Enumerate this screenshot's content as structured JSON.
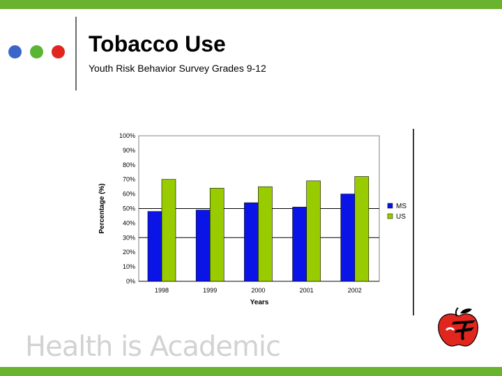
{
  "slide": {
    "title": "Tobacco Use",
    "subtitle": "Youth Risk Behavior Survey Grades 9-12",
    "footer": "Health is Academic",
    "colors": {
      "accent_bar": "#6ab32e",
      "dot_blue": "#3a66c8",
      "dot_green": "#5ab534",
      "dot_red": "#e0261e",
      "logo_red": "#e0261e"
    },
    "icons": [
      "apple-logo-icon"
    ]
  },
  "chart_data": {
    "type": "bar",
    "categories": [
      "1998",
      "1999",
      "2000",
      "2001",
      "2002"
    ],
    "series": [
      {
        "name": "MS",
        "values": [
          48,
          49,
          54,
          51,
          60
        ],
        "color": "#0a14e6"
      },
      {
        "name": "US",
        "values": [
          70,
          64,
          65,
          69,
          72
        ],
        "color": "#99cc00"
      }
    ],
    "xlabel": "Years",
    "ylabel": "Percentage (%)",
    "ylim": [
      0,
      100
    ],
    "yticks": [
      "0%",
      "10%",
      "20%",
      "30%",
      "40%",
      "50%",
      "60%",
      "70%",
      "80%",
      "90%",
      "100%"
    ],
    "grid": "horizontal lines at 0%, 30%, 50%",
    "legend": "right"
  }
}
